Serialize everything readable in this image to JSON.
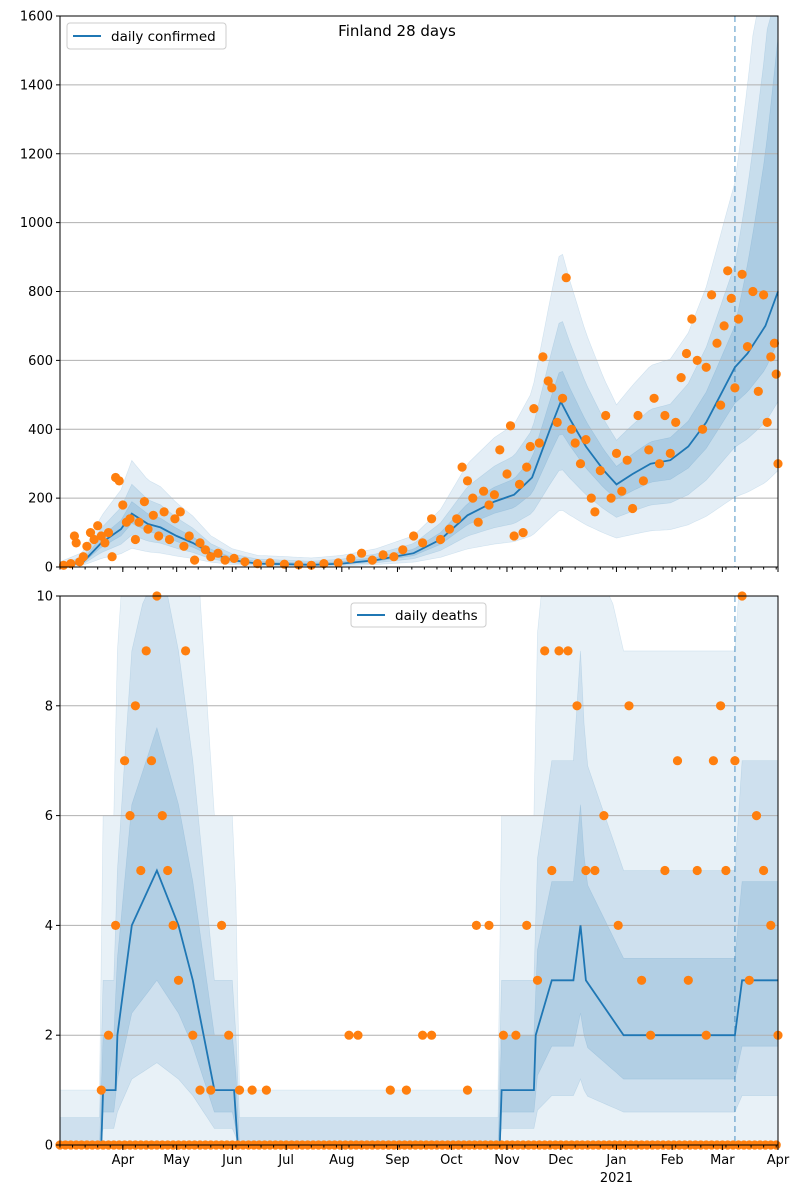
{
  "figure": {
    "title": "Finland 28 days"
  },
  "colors": {
    "line": "#1f77b4",
    "points": "#ff7f0e",
    "band": "#1f77b4",
    "grid": "#b0b0b0",
    "forecast_line": "#1f77b4"
  },
  "chart_data": [
    {
      "type": "line",
      "title": "Finland 28 days",
      "legend": {
        "label": "daily confirmed",
        "placement": "top-left"
      },
      "ylim": [
        0,
        1600
      ],
      "yticks": [
        0,
        200,
        400,
        600,
        800,
        1000,
        1200,
        1400,
        1600
      ],
      "grid": "y",
      "x_range": [
        "2020-02-26",
        "2021-04-01"
      ],
      "forecast_start": "2021-03-08",
      "line_points": [
        [
          "2020-02-26",
          0
        ],
        [
          "2020-03-10",
          15
        ],
        [
          "2020-03-20",
          70
        ],
        [
          "2020-03-31",
          110
        ],
        [
          "2020-04-06",
          155
        ],
        [
          "2020-04-15",
          125
        ],
        [
          "2020-04-22",
          115
        ],
        [
          "2020-05-01",
          90
        ],
        [
          "2020-05-10",
          70
        ],
        [
          "2020-05-20",
          40
        ],
        [
          "2020-06-01",
          20
        ],
        [
          "2020-06-15",
          10
        ],
        [
          "2020-07-01",
          8
        ],
        [
          "2020-07-15",
          6
        ],
        [
          "2020-08-01",
          10
        ],
        [
          "2020-08-20",
          20
        ],
        [
          "2020-09-10",
          40
        ],
        [
          "2020-09-25",
          80
        ],
        [
          "2020-10-10",
          150
        ],
        [
          "2020-10-25",
          190
        ],
        [
          "2020-11-05",
          210
        ],
        [
          "2020-11-15",
          260
        ],
        [
          "2020-11-25",
          400
        ],
        [
          "2020-12-01",
          480
        ],
        [
          "2020-12-06",
          430
        ],
        [
          "2020-12-15",
          350
        ],
        [
          "2020-12-25",
          280
        ],
        [
          "2021-01-01",
          240
        ],
        [
          "2021-01-10",
          270
        ],
        [
          "2021-01-20",
          300
        ],
        [
          "2021-01-31",
          310
        ],
        [
          "2021-02-10",
          350
        ],
        [
          "2021-02-20",
          420
        ],
        [
          "2021-02-28",
          500
        ],
        [
          "2021-03-08",
          580
        ],
        [
          "2021-03-15",
          620
        ],
        [
          "2021-03-25",
          700
        ],
        [
          "2021-04-01",
          800
        ]
      ],
      "points": [
        [
          "2020-02-28",
          5
        ],
        [
          "2020-03-03",
          10
        ],
        [
          "2020-03-05",
          90
        ],
        [
          "2020-03-06",
          70
        ],
        [
          "2020-03-08",
          15
        ],
        [
          "2020-03-10",
          30
        ],
        [
          "2020-03-12",
          60
        ],
        [
          "2020-03-14",
          100
        ],
        [
          "2020-03-16",
          80
        ],
        [
          "2020-03-18",
          120
        ],
        [
          "2020-03-20",
          90
        ],
        [
          "2020-03-22",
          70
        ],
        [
          "2020-03-24",
          100
        ],
        [
          "2020-03-26",
          30
        ],
        [
          "2020-03-28",
          260
        ],
        [
          "2020-03-30",
          250
        ],
        [
          "2020-04-01",
          180
        ],
        [
          "2020-04-03",
          130
        ],
        [
          "2020-04-05",
          140
        ],
        [
          "2020-04-08",
          80
        ],
        [
          "2020-04-10",
          130
        ],
        [
          "2020-04-13",
          190
        ],
        [
          "2020-04-15",
          110
        ],
        [
          "2020-04-18",
          150
        ],
        [
          "2020-04-21",
          90
        ],
        [
          "2020-04-24",
          160
        ],
        [
          "2020-04-27",
          80
        ],
        [
          "2020-04-30",
          140
        ],
        [
          "2020-05-03",
          160
        ],
        [
          "2020-05-05",
          60
        ],
        [
          "2020-05-08",
          90
        ],
        [
          "2020-05-11",
          20
        ],
        [
          "2020-05-14",
          70
        ],
        [
          "2020-05-17",
          50
        ],
        [
          "2020-05-20",
          30
        ],
        [
          "2020-05-24",
          40
        ],
        [
          "2020-05-28",
          20
        ],
        [
          "2020-06-02",
          25
        ],
        [
          "2020-06-08",
          15
        ],
        [
          "2020-06-15",
          10
        ],
        [
          "2020-06-22",
          12
        ],
        [
          "2020-06-30",
          8
        ],
        [
          "2020-07-08",
          6
        ],
        [
          "2020-07-15",
          5
        ],
        [
          "2020-07-22",
          10
        ],
        [
          "2020-07-30",
          12
        ],
        [
          "2020-08-06",
          25
        ],
        [
          "2020-08-12",
          40
        ],
        [
          "2020-08-18",
          20
        ],
        [
          "2020-08-24",
          35
        ],
        [
          "2020-08-30",
          30
        ],
        [
          "2020-09-04",
          50
        ],
        [
          "2020-09-10",
          90
        ],
        [
          "2020-09-15",
          70
        ],
        [
          "2020-09-20",
          140
        ],
        [
          "2020-09-25",
          80
        ],
        [
          "2020-09-30",
          110
        ],
        [
          "2020-10-04",
          140
        ],
        [
          "2020-10-07",
          290
        ],
        [
          "2020-10-10",
          250
        ],
        [
          "2020-10-13",
          200
        ],
        [
          "2020-10-16",
          130
        ],
        [
          "2020-10-19",
          220
        ],
        [
          "2020-10-22",
          180
        ],
        [
          "2020-10-25",
          210
        ],
        [
          "2020-10-28",
          340
        ],
        [
          "2020-11-01",
          270
        ],
        [
          "2020-11-03",
          410
        ],
        [
          "2020-11-05",
          90
        ],
        [
          "2020-11-08",
          240
        ],
        [
          "2020-11-10",
          100
        ],
        [
          "2020-11-12",
          290
        ],
        [
          "2020-11-14",
          350
        ],
        [
          "2020-11-16",
          460
        ],
        [
          "2020-11-19",
          360
        ],
        [
          "2020-11-21",
          610
        ],
        [
          "2020-11-24",
          540
        ],
        [
          "2020-11-26",
          520
        ],
        [
          "2020-11-29",
          420
        ],
        [
          "2020-12-02",
          490
        ],
        [
          "2020-12-04",
          840
        ],
        [
          "2020-12-07",
          400
        ],
        [
          "2020-12-09",
          360
        ],
        [
          "2020-12-12",
          300
        ],
        [
          "2020-12-15",
          370
        ],
        [
          "2020-12-18",
          200
        ],
        [
          "2020-12-20",
          160
        ],
        [
          "2020-12-23",
          280
        ],
        [
          "2020-12-26",
          440
        ],
        [
          "2020-12-29",
          200
        ],
        [
          "2021-01-01",
          330
        ],
        [
          "2021-01-04",
          220
        ],
        [
          "2021-01-07",
          310
        ],
        [
          "2021-01-10",
          170
        ],
        [
          "2021-01-13",
          440
        ],
        [
          "2021-01-16",
          250
        ],
        [
          "2021-01-19",
          340
        ],
        [
          "2021-01-22",
          490
        ],
        [
          "2021-01-25",
          300
        ],
        [
          "2021-01-28",
          440
        ],
        [
          "2021-01-31",
          330
        ],
        [
          "2021-02-03",
          420
        ],
        [
          "2021-02-06",
          550
        ],
        [
          "2021-02-09",
          620
        ],
        [
          "2021-02-12",
          720
        ],
        [
          "2021-02-15",
          600
        ],
        [
          "2021-02-18",
          400
        ],
        [
          "2021-02-20",
          580
        ],
        [
          "2021-02-23",
          790
        ],
        [
          "2021-02-26",
          650
        ],
        [
          "2021-02-28",
          470
        ],
        [
          "2021-03-02",
          700
        ],
        [
          "2021-03-04",
          860
        ],
        [
          "2021-03-06",
          780
        ],
        [
          "2021-03-08",
          520
        ],
        [
          "2021-03-10",
          720
        ],
        [
          "2021-03-12",
          850
        ],
        [
          "2021-03-15",
          640
        ],
        [
          "2021-03-18",
          800
        ],
        [
          "2021-03-21",
          510
        ],
        [
          "2021-03-24",
          790
        ],
        [
          "2021-03-26",
          420
        ],
        [
          "2021-03-28",
          610
        ],
        [
          "2021-03-30",
          650
        ],
        [
          "2021-03-31",
          560
        ],
        [
          "2021-04-01",
          300
        ]
      ]
    },
    {
      "type": "line",
      "legend": {
        "label": "daily deaths",
        "placement": "top-center"
      },
      "ylim": [
        0,
        10
      ],
      "yticks": [
        0,
        2,
        4,
        6,
        8,
        10
      ],
      "grid": "y",
      "x_range": [
        "2020-02-26",
        "2021-04-01"
      ],
      "x_ticks": [
        {
          "date": "2020-04-01",
          "label": "Apr"
        },
        {
          "date": "2020-05-01",
          "label": "May"
        },
        {
          "date": "2020-06-01",
          "label": "Jun"
        },
        {
          "date": "2020-07-01",
          "label": "Jul"
        },
        {
          "date": "2020-08-01",
          "label": "Aug"
        },
        {
          "date": "2020-09-01",
          "label": "Sep"
        },
        {
          "date": "2020-10-01",
          "label": "Oct"
        },
        {
          "date": "2020-11-01",
          "label": "Nov"
        },
        {
          "date": "2020-12-01",
          "label": "Dec"
        },
        {
          "date": "2021-01-01",
          "label": "Jan"
        },
        {
          "date": "2021-02-01",
          "label": "Feb"
        },
        {
          "date": "2021-03-01",
          "label": "Mar"
        },
        {
          "date": "2021-04-01",
          "label": "Apr"
        }
      ],
      "year_label": {
        "date": "2021-01-01",
        "label": "2021"
      },
      "forecast_start": "2021-03-08",
      "line_points": [
        [
          "2020-02-26",
          0
        ],
        [
          "2020-03-20",
          0
        ],
        [
          "2020-03-21",
          1
        ],
        [
          "2020-03-28",
          1
        ],
        [
          "2020-03-29",
          2
        ],
        [
          "2020-04-02",
          3
        ],
        [
          "2020-04-06",
          4
        ],
        [
          "2020-04-20",
          5
        ],
        [
          "2020-05-02",
          4
        ],
        [
          "2020-05-10",
          3
        ],
        [
          "2020-05-16",
          2
        ],
        [
          "2020-05-22",
          1
        ],
        [
          "2020-06-02",
          1
        ],
        [
          "2020-06-04",
          0
        ],
        [
          "2020-10-28",
          0
        ],
        [
          "2020-10-29",
          1
        ],
        [
          "2020-11-16",
          1
        ],
        [
          "2020-11-17",
          2
        ],
        [
          "2020-11-26",
          3
        ],
        [
          "2020-12-08",
          3
        ],
        [
          "2020-12-12",
          4
        ],
        [
          "2020-12-15",
          3
        ],
        [
          "2021-01-05",
          2
        ],
        [
          "2021-03-08",
          2
        ],
        [
          "2021-03-12",
          3
        ],
        [
          "2021-04-01",
          3
        ]
      ],
      "points": [
        [
          "2020-03-20",
          1
        ],
        [
          "2020-03-24",
          2
        ],
        [
          "2020-03-28",
          4
        ],
        [
          "2020-04-02",
          7
        ],
        [
          "2020-04-05",
          6
        ],
        [
          "2020-04-08",
          8
        ],
        [
          "2020-04-11",
          5
        ],
        [
          "2020-04-14",
          9
        ],
        [
          "2020-04-17",
          7
        ],
        [
          "2020-04-20",
          10
        ],
        [
          "2020-04-23",
          6
        ],
        [
          "2020-04-26",
          5
        ],
        [
          "2020-04-29",
          4
        ],
        [
          "2020-05-02",
          3
        ],
        [
          "2020-05-06",
          9
        ],
        [
          "2020-05-10",
          2
        ],
        [
          "2020-05-14",
          1
        ],
        [
          "2020-05-20",
          1
        ],
        [
          "2020-05-26",
          4
        ],
        [
          "2020-05-30",
          2
        ],
        [
          "2020-06-05",
          1
        ],
        [
          "2020-06-12",
          1
        ],
        [
          "2020-06-20",
          1
        ],
        [
          "2020-08-05",
          2
        ],
        [
          "2020-08-10",
          2
        ],
        [
          "2020-08-28",
          1
        ],
        [
          "2020-09-06",
          1
        ],
        [
          "2020-09-15",
          2
        ],
        [
          "2020-09-20",
          2
        ],
        [
          "2020-10-10",
          1
        ],
        [
          "2020-10-15",
          4
        ],
        [
          "2020-10-22",
          4
        ],
        [
          "2020-10-30",
          2
        ],
        [
          "2020-11-06",
          2
        ],
        [
          "2020-11-12",
          4
        ],
        [
          "2020-11-18",
          3
        ],
        [
          "2020-11-22",
          9
        ],
        [
          "2020-11-26",
          5
        ],
        [
          "2020-11-30",
          9
        ],
        [
          "2020-12-05",
          9
        ],
        [
          "2020-12-10",
          8
        ],
        [
          "2020-12-15",
          5
        ],
        [
          "2020-12-20",
          5
        ],
        [
          "2020-12-25",
          6
        ],
        [
          "2021-01-02",
          4
        ],
        [
          "2021-01-08",
          8
        ],
        [
          "2021-01-15",
          3
        ],
        [
          "2021-01-20",
          2
        ],
        [
          "2021-01-28",
          5
        ],
        [
          "2021-02-04",
          7
        ],
        [
          "2021-02-10",
          3
        ],
        [
          "2021-02-15",
          5
        ],
        [
          "2021-02-20",
          2
        ],
        [
          "2021-02-24",
          7
        ],
        [
          "2021-02-28",
          8
        ],
        [
          "2021-03-03",
          5
        ],
        [
          "2021-03-08",
          7
        ],
        [
          "2021-03-12",
          10
        ],
        [
          "2021-03-16",
          3
        ],
        [
          "2021-03-20",
          6
        ],
        [
          "2021-03-24",
          5
        ],
        [
          "2021-03-28",
          4
        ],
        [
          "2021-04-01",
          2
        ]
      ],
      "zero_points_every_days": 3
    }
  ]
}
